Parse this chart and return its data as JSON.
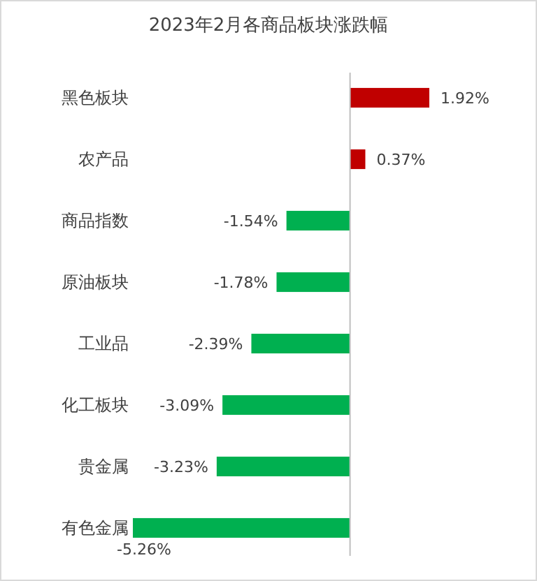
{
  "chart_data": {
    "type": "bar",
    "orientation": "horizontal",
    "title": "2023年2月各商品板块涨跌幅",
    "categories": [
      "黑色板块",
      "农产品",
      "商品指数",
      "原油板块",
      "工业品",
      "化工板块",
      "贵金属",
      "有色金属"
    ],
    "values": [
      1.92,
      0.37,
      -1.54,
      -1.78,
      -2.39,
      -3.09,
      -3.23,
      -5.26
    ],
    "colors": [
      "#c00000",
      "#c00000",
      "#00b050",
      "#00b050",
      "#00b050",
      "#00b050",
      "#00b050",
      "#00b050"
    ],
    "value_labels": [
      "1.92%",
      "0.37%",
      "-1.54%",
      "-1.78%",
      "-2.39%",
      "-3.09%",
      "-3.23%",
      "-5.26%"
    ]
  }
}
